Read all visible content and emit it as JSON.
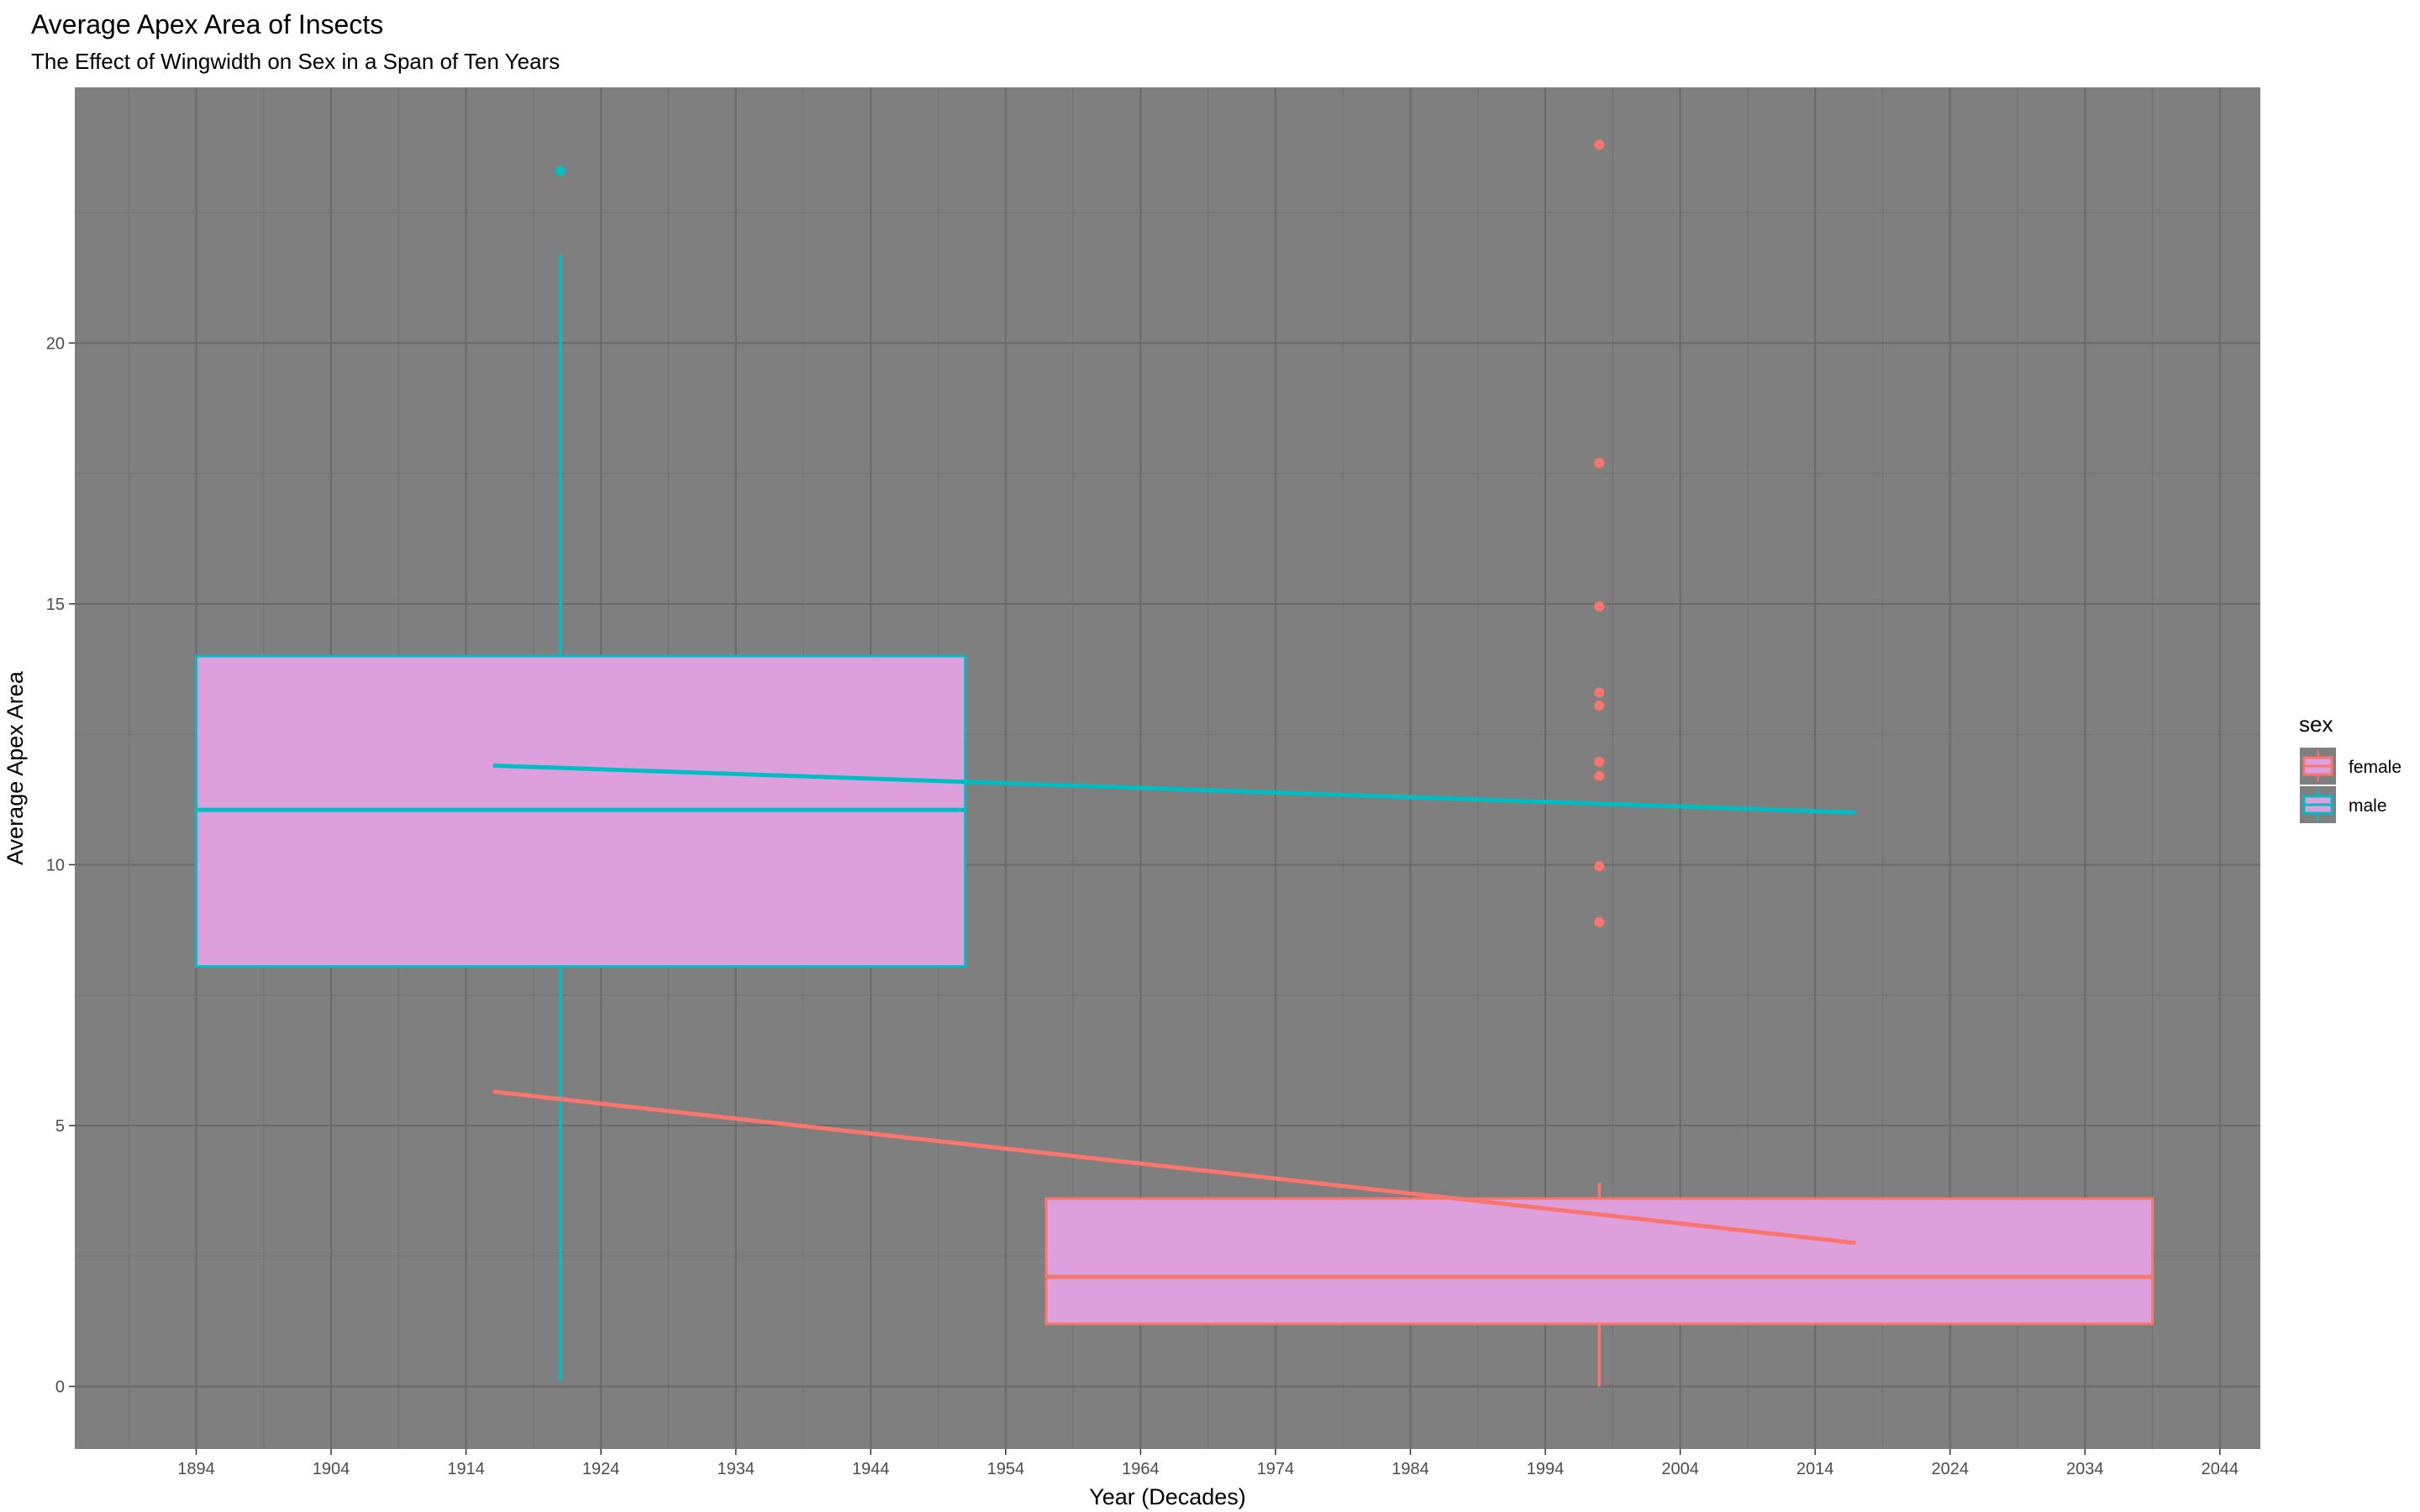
{
  "chart_data": {
    "type": "boxplot",
    "title": "Average Apex Area of Insects",
    "subtitle": "The Effect of Wingwidth on Sex in a Span of Ten Years",
    "xlabel": "Year (Decades)",
    "ylabel": "Average Apex Area",
    "xlim": [
      1885,
      2047
    ],
    "ylim": [
      -1.2,
      24.9
    ],
    "x_ticks": [
      1894,
      1904,
      1914,
      1924,
      1934,
      1944,
      1954,
      1964,
      1974,
      1984,
      1994,
      2004,
      2014,
      2024,
      2034,
      2044
    ],
    "y_ticks": [
      0,
      5,
      10,
      15,
      20
    ],
    "grid": true,
    "panel_background": "#7f7f7f",
    "legend": {
      "title": "sex",
      "position": "right",
      "entries": [
        {
          "label": "female",
          "color": "#F8766D"
        },
        {
          "label": "male",
          "color": "#00BFC4"
        }
      ]
    },
    "series": [
      {
        "name": "male",
        "color": "#00BFC4",
        "fill": "#DDA0DD",
        "box": {
          "x_center": 1921,
          "x_min": 1894,
          "x_max": 1951,
          "lower_whisker": 0.1,
          "q1": 8.05,
          "median": 11.05,
          "q3": 14.0,
          "upper_whisker": 21.7
        },
        "outliers": [
          {
            "x": 1921,
            "y": 23.3
          }
        ],
        "trend": {
          "x": [
            1916,
            2017
          ],
          "y": [
            11.9,
            11.0
          ]
        }
      },
      {
        "name": "female",
        "color": "#F8766D",
        "fill": "#DDA0DD",
        "box": {
          "x_center": 1998,
          "x_min": 1957,
          "x_max": 2039,
          "lower_whisker": 0.0,
          "q1": 1.2,
          "median": 2.1,
          "q3": 3.6,
          "upper_whisker": 3.9
        },
        "outliers": [
          {
            "x": 1998,
            "y": 8.9
          },
          {
            "x": 1998,
            "y": 9.97
          },
          {
            "x": 1998,
            "y": 11.7
          },
          {
            "x": 1998,
            "y": 11.97
          },
          {
            "x": 1998,
            "y": 13.05
          },
          {
            "x": 1998,
            "y": 13.3
          },
          {
            "x": 1998,
            "y": 14.95
          },
          {
            "x": 1998,
            "y": 17.7
          },
          {
            "x": 1998,
            "y": 23.8
          }
        ],
        "trend": {
          "x": [
            1916,
            2017
          ],
          "y": [
            5.65,
            2.75
          ]
        }
      }
    ]
  }
}
